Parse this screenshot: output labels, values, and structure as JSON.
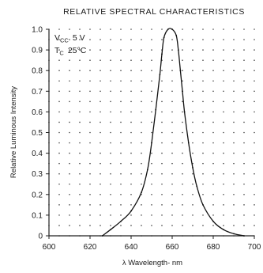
{
  "chart_data": {
    "type": "line",
    "title": "RELATIVE SPECTRAL CHARACTERISTICS",
    "xlabel": "λ  Wavelength- nm",
    "ylabel": "Relative Luminous Intensity",
    "xlim": [
      600,
      700
    ],
    "ylim": [
      0,
      1.0
    ],
    "x_ticks": [
      "600",
      "620",
      "640",
      "660",
      "680",
      "700"
    ],
    "y_ticks": [
      "0",
      "0.1",
      "0.2",
      "0.3",
      "0.4",
      "0.5",
      "0.6",
      "0.7",
      "0.8",
      "0.9",
      "1.0"
    ],
    "grid": "dotted",
    "conditions": [
      {
        "symbol": "V",
        "subscript": "CC",
        "value": "5 V"
      },
      {
        "symbol": "T",
        "subscript": "C",
        "value": "25°C"
      }
    ],
    "series": [
      {
        "x": [
          626,
          630,
          635,
          640,
          645,
          648,
          650,
          652,
          654,
          655,
          656,
          658,
          660,
          662,
          663,
          664,
          665,
          666,
          668,
          670,
          672,
          675,
          680,
          685,
          690,
          695
        ],
        "y": [
          0.0,
          0.03,
          0.07,
          0.12,
          0.21,
          0.32,
          0.45,
          0.61,
          0.78,
          0.88,
          0.96,
          1.0,
          1.0,
          0.97,
          0.9,
          0.8,
          0.7,
          0.6,
          0.45,
          0.33,
          0.24,
          0.15,
          0.07,
          0.03,
          0.01,
          0.0
        ]
      }
    ]
  }
}
